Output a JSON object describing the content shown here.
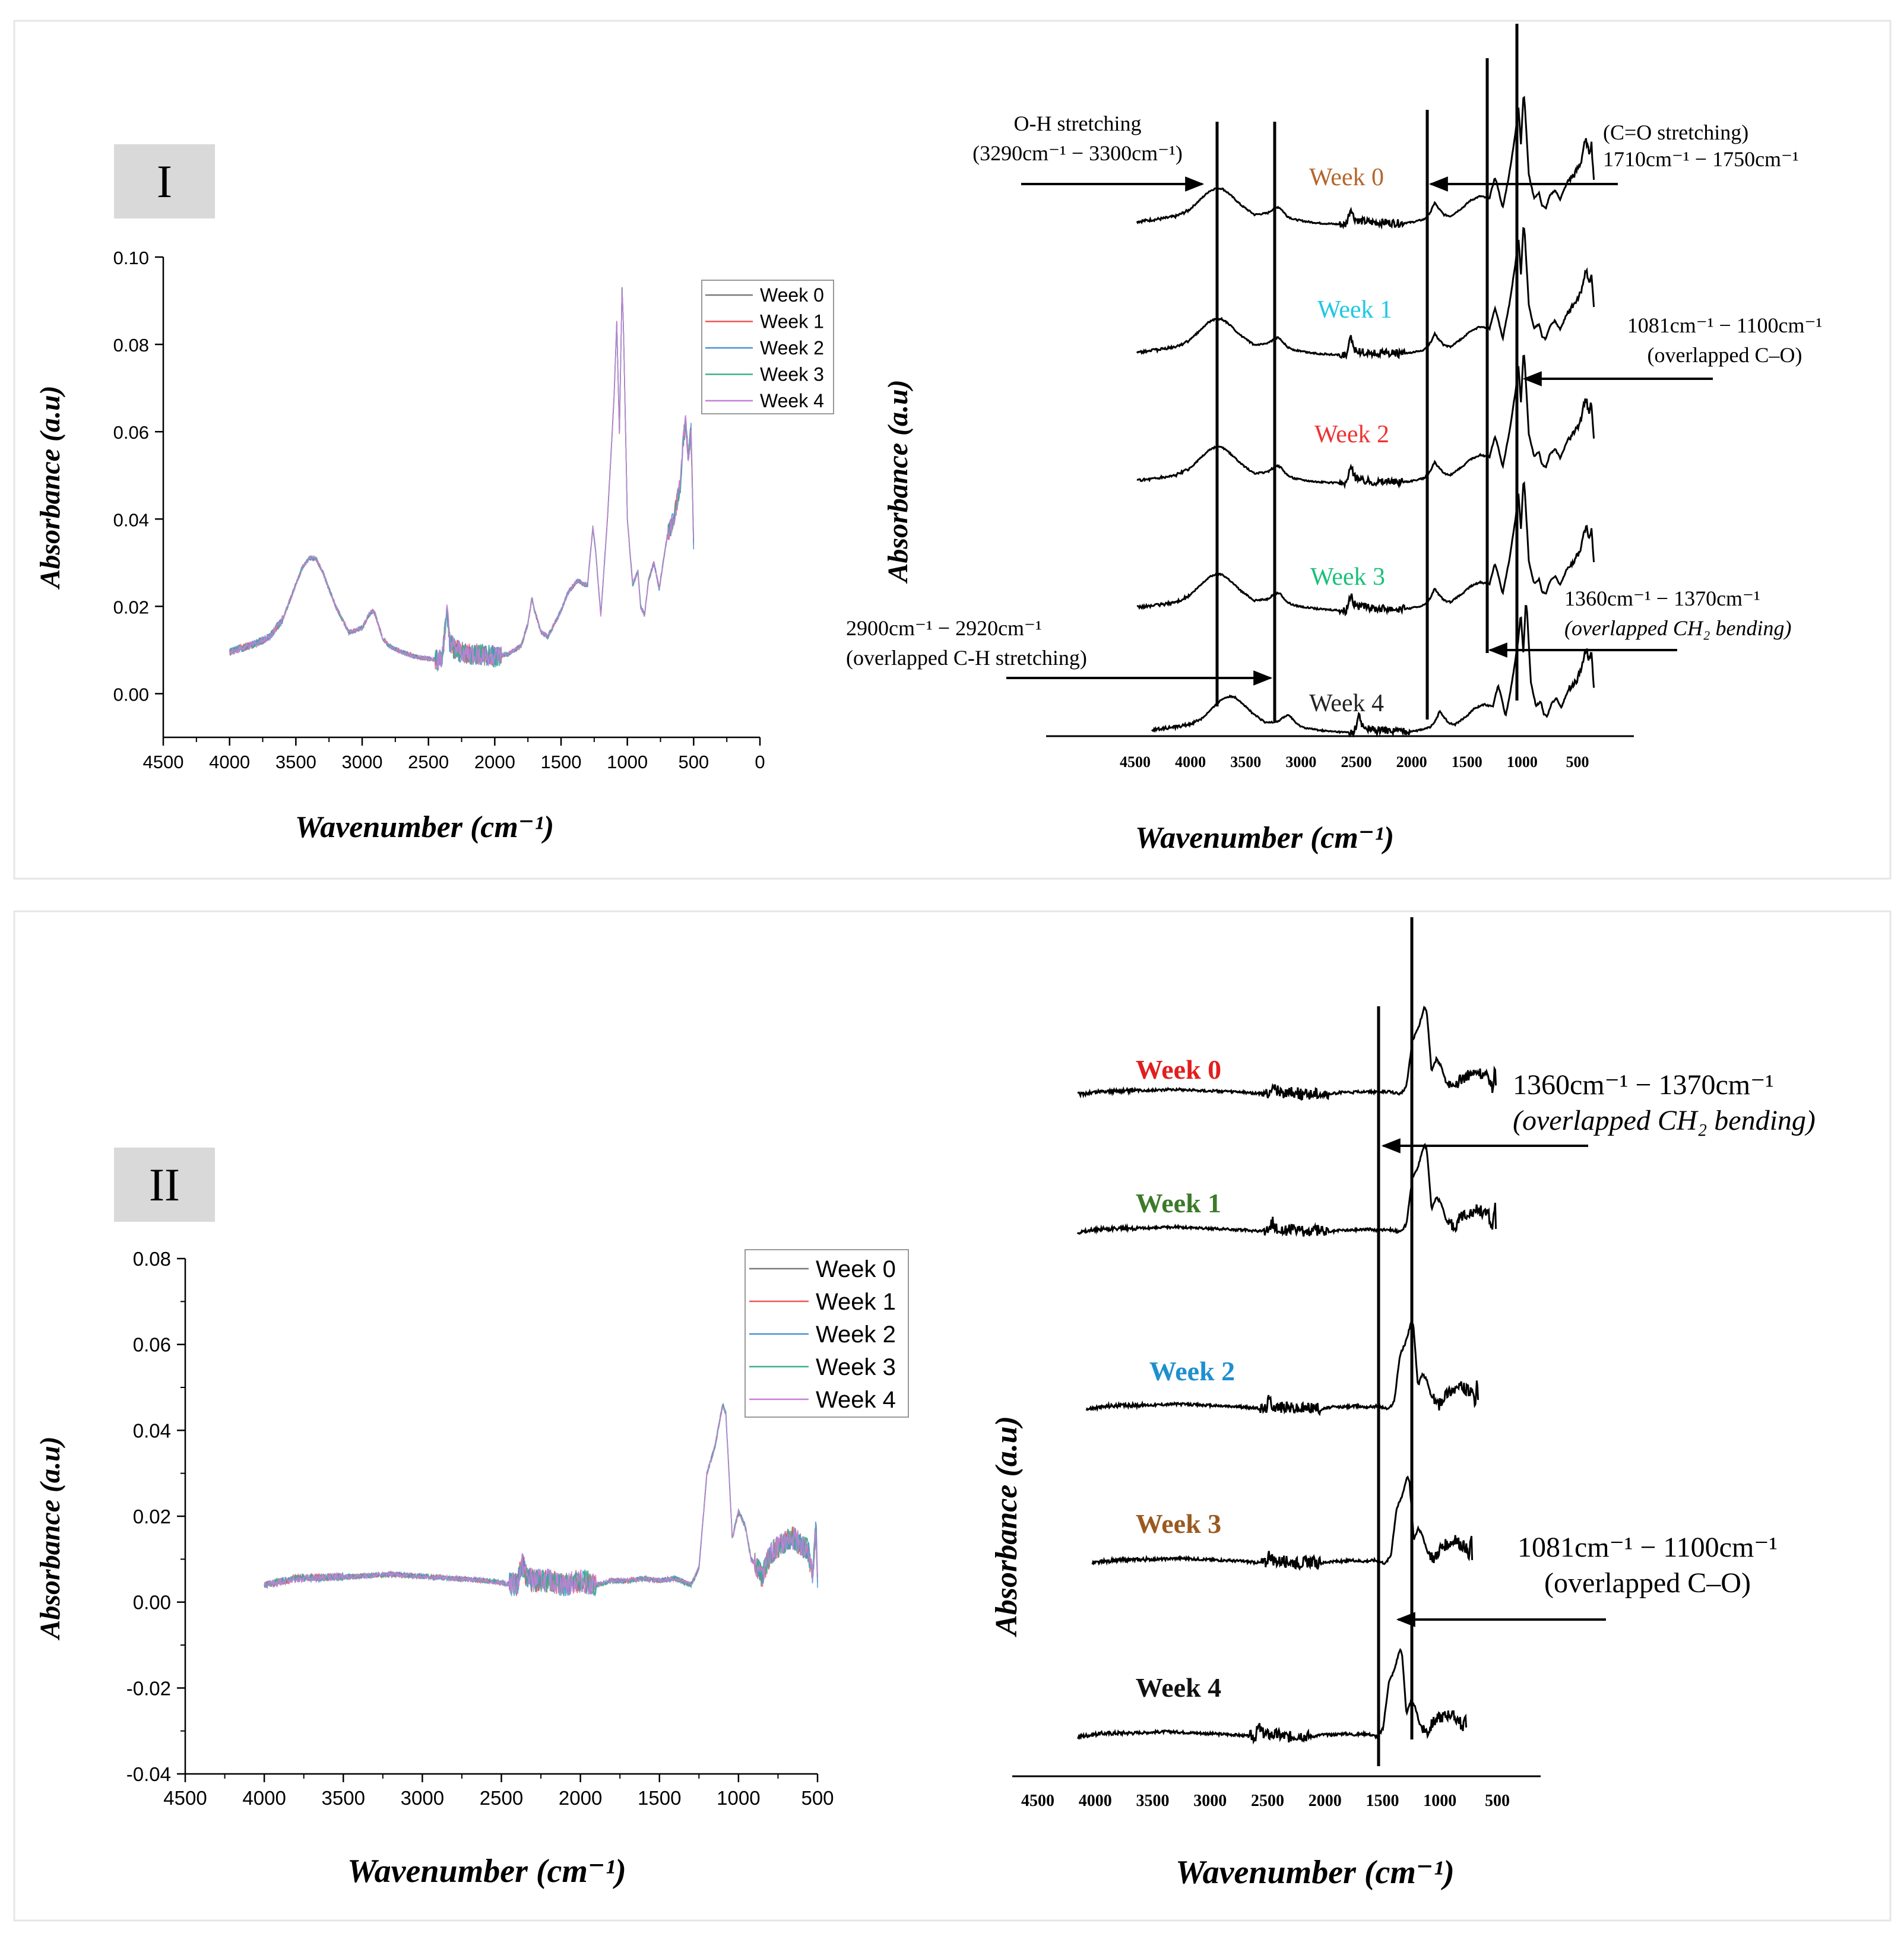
{
  "panels": [
    {
      "label": "I",
      "chart_data": [
        {
          "type": "line",
          "title": "",
          "xlabel": "Wavenumber (cm⁻¹)",
          "ylabel": "Absorbance (a.u)",
          "xlim": [
            4500,
            0
          ],
          "ylim": [
            -0.01,
            0.1
          ],
          "x_ticks": [
            "4500",
            "4000",
            "3500",
            "3000",
            "2500",
            "2000",
            "1500",
            "1000",
            "500",
            "0"
          ],
          "y_ticks": [
            "0.10",
            "0.08",
            "0.06",
            "0.04",
            "0.02",
            "0.00"
          ],
          "legend": [
            "Week 0",
            "Week 1",
            "Week 2",
            "Week 3",
            "Week 4"
          ],
          "legend_position": "top-right",
          "series_colors": [
            "#7a7a7a",
            "#ee5555",
            "#4a90d9",
            "#3bb08f",
            "#c77fd6"
          ],
          "spectrum": {
            "x": [
              4000,
              3900,
              3800,
              3700,
              3600,
              3500,
              3450,
              3400,
              3350,
              3300,
              3200,
              3100,
              3000,
              2950,
              2920,
              2900,
              2850,
              2800,
              2700,
              2600,
              2500,
              2400,
              2360,
              2340,
              2300,
              2200,
              2100,
              2000,
              1900,
              1800,
              1750,
              1720,
              1700,
              1650,
              1600,
              1500,
              1450,
              1400,
              1370,
              1330,
              1300,
              1260,
              1240,
              1200,
              1150,
              1100,
              1080,
              1060,
              1040,
              1030,
              1000,
              960,
              920,
              900,
              870,
              840,
              800,
              760,
              700,
              650,
              600,
              580,
              560,
              540,
              520,
              500
            ],
            "y": [
              0.0095,
              0.0105,
              0.0115,
              0.013,
              0.017,
              0.025,
              0.029,
              0.031,
              0.031,
              0.028,
              0.02,
              0.014,
              0.015,
              0.018,
              0.019,
              0.018,
              0.013,
              0.011,
              0.0095,
              0.0085,
              0.008,
              0.0075,
              0.019,
              0.012,
              0.01,
              0.009,
              0.009,
              0.0085,
              0.009,
              0.011,
              0.016,
              0.022,
              0.019,
              0.014,
              0.013,
              0.019,
              0.023,
              0.025,
              0.026,
              0.025,
              0.025,
              0.038,
              0.033,
              0.018,
              0.04,
              0.068,
              0.085,
              0.06,
              0.093,
              0.085,
              0.04,
              0.025,
              0.028,
              0.02,
              0.018,
              0.026,
              0.03,
              0.024,
              0.036,
              0.04,
              0.048,
              0.058,
              0.062,
              0.054,
              0.06,
              0.035
            ]
          }
        },
        {
          "type": "line",
          "title": "",
          "xlabel": "Wavenumber (cm⁻¹)",
          "ylabel": "Absorbance (a.u)",
          "x_ticks": [
            "4500",
            "4000",
            "3500",
            "3000",
            "2500",
            "2000",
            "1500",
            "1000",
            "500"
          ],
          "stacked_offset_labels": [
            {
              "text": "Week 4",
              "color": "#b5652d"
            },
            {
              "text": "Week 3",
              "color": "#1ec8e0"
            },
            {
              "text": "Week 2",
              "color": "#ee3333"
            },
            {
              "text": "Week 1",
              "color": "#19c07a"
            },
            {
              "text": "Week 0",
              "color": "#222222"
            }
          ],
          "annotations": {
            "oh_title": "O-H stretching",
            "oh_range": "(3290cm⁻¹ − 3300cm⁻¹)",
            "co_title": "(C=O stretching)",
            "co_range": "1710cm⁻¹ − 1750cm⁻¹",
            "c_o_range": "1081cm⁻¹ − 1100cm⁻¹",
            "c_o_title": "(overlapped C–O)",
            "ch2_range": "1360cm⁻¹ − 1370cm⁻¹",
            "ch2_title": "(overlapped CH₂ bending)",
            "ch_range": "2900cm⁻¹ − 2920cm⁻¹",
            "ch_title": "(overlapped C-H stretching)"
          }
        }
      ]
    },
    {
      "label": "II",
      "chart_data": [
        {
          "type": "line",
          "title": "",
          "xlabel": "Wavenumber (cm⁻¹)",
          "ylabel": "Absorbance (a.u)",
          "xlim": [
            4500,
            500
          ],
          "ylim": [
            -0.04,
            0.08
          ],
          "x_ticks": [
            "4500",
            "4000",
            "3500",
            "3000",
            "2500",
            "2000",
            "1500",
            "1000",
            "500"
          ],
          "y_ticks": [
            "0.08",
            "0.06",
            "0.04",
            "0.02",
            "0.00",
            "-0.02",
            "-0.04"
          ],
          "legend": [
            "Week 0",
            "Week 1",
            "Week 2",
            "Week 3",
            "Week 4"
          ],
          "legend_position": "top-right",
          "series_colors": [
            "#7a7a7a",
            "#ee5555",
            "#4a90d9",
            "#3bb08f",
            "#c77fd6"
          ],
          "spectrum": {
            "x": [
              4000,
              3800,
              3600,
              3400,
              3200,
              3000,
              2800,
              2600,
              2400,
              2370,
              2340,
              2300,
              2200,
              2100,
              2000,
              1900,
              1800,
              1700,
              1600,
              1500,
              1400,
              1300,
              1250,
              1200,
              1150,
              1100,
              1080,
              1060,
              1040,
              1000,
              960,
              920,
              880,
              850,
              800,
              750,
              700,
              650,
              600,
              560,
              530,
              510,
              500
            ],
            "y": [
              0.004,
              0.0055,
              0.0058,
              0.006,
              0.0065,
              0.006,
              0.0055,
              0.005,
              0.004,
              0.009,
              0.006,
              0.005,
              0.005,
              0.004,
              0.005,
              0.004,
              0.005,
              0.005,
              0.0055,
              0.005,
              0.0055,
              0.004,
              0.008,
              0.03,
              0.036,
              0.046,
              0.044,
              0.03,
              0.015,
              0.021,
              0.018,
              0.01,
              0.008,
              0.006,
              0.011,
              0.013,
              0.014,
              0.015,
              0.013,
              0.012,
              0.006,
              0.018,
              0.005
            ]
          }
        },
        {
          "type": "line",
          "title": "",
          "xlabel": "Wavenumber (cm⁻¹)",
          "ylabel": "Absorbance (a.u)",
          "x_ticks": [
            "4500",
            "4000",
            "3500",
            "3000",
            "2500",
            "2000",
            "1500",
            "1000",
            "500"
          ],
          "stacked_offset_labels": [
            {
              "text": "Week 4",
              "color": "#e21e1e"
            },
            {
              "text": "Week 3",
              "color": "#3c7a2a"
            },
            {
              "text": "Week 2",
              "color": "#1f8fd0"
            },
            {
              "text": "Week 1",
              "color": "#9a5a20"
            },
            {
              "text": "Week 0",
              "color": "#111111"
            }
          ],
          "annotations": {
            "ch2_range": "1360cm⁻¹ − 1370cm⁻¹",
            "ch2_title": "(overlapped CH₂ bending)",
            "c_o_range": "1081cm⁻¹ − 1100cm⁻¹",
            "c_o_title": "(overlapped C–O)"
          }
        }
      ]
    }
  ]
}
